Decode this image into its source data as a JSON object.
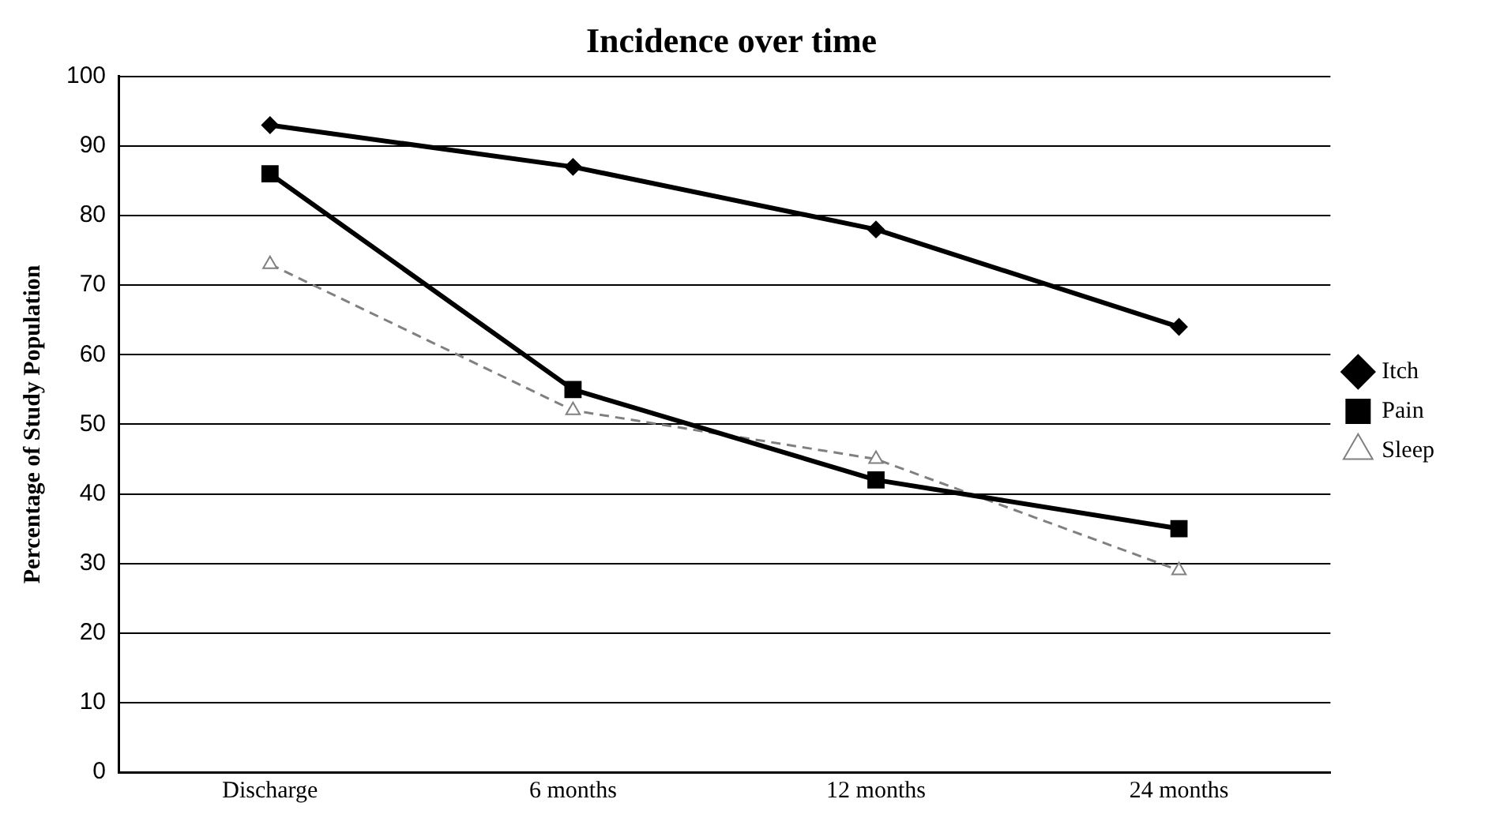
{
  "chart_data": {
    "type": "line",
    "title": "Incidence over time",
    "ylabel": "Percentage of Study Population",
    "categories": [
      "Discharge",
      "6 months",
      "12 months",
      "24 months"
    ],
    "series": [
      {
        "name": "Itch",
        "color": "#000000",
        "values": [
          93,
          87,
          78,
          64
        ],
        "marker": "diamond",
        "line_style": "solid"
      },
      {
        "name": "Pain",
        "color": "#000000",
        "values": [
          86,
          55,
          42,
          35
        ],
        "marker": "square",
        "line_style": "solid"
      },
      {
        "name": "Sleep",
        "color": "#808080",
        "values": [
          73,
          52,
          45,
          29
        ],
        "marker": "triangle",
        "line_style": "dashed"
      }
    ],
    "ylim": [
      0,
      100
    ],
    "yticks": [
      0,
      10,
      20,
      30,
      40,
      50,
      60,
      70,
      80,
      90,
      100
    ],
    "grid": "y",
    "legend": "right"
  }
}
